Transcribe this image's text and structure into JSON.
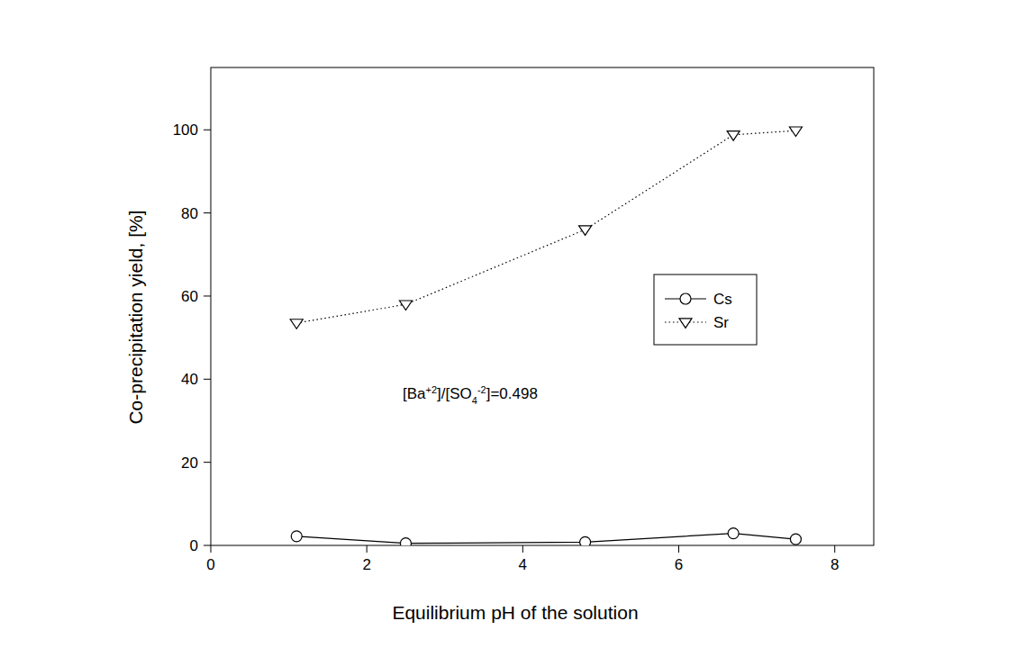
{
  "chart_data": {
    "type": "line",
    "x_label": "Equilibrium pH of the solution",
    "y_label": "Co-precipitation yield, [%]",
    "annotation": "[Ba+2]/[SO4-2]=0.498",
    "x": [
      1.1,
      2.5,
      4.8,
      6.7,
      7.5
    ],
    "series": [
      {
        "name": "Cs",
        "color": "#000000",
        "marker": "circle",
        "line_style": "solid",
        "values": [
          2.2,
          0.5,
          0.8,
          2.9,
          1.5
        ]
      },
      {
        "name": "Sr",
        "color": "#000000",
        "marker": "triangle-down",
        "line_style": "dotted",
        "values": [
          53.5,
          58,
          76,
          98.8,
          99.8
        ]
      }
    ],
    "xlim": [
      0,
      8.5
    ],
    "xticks": [
      0,
      2,
      4,
      6,
      8
    ],
    "ylim": [
      0,
      115
    ],
    "yticks": [
      0,
      20,
      40,
      60,
      80,
      100
    ],
    "grid": false,
    "legend": "right"
  }
}
